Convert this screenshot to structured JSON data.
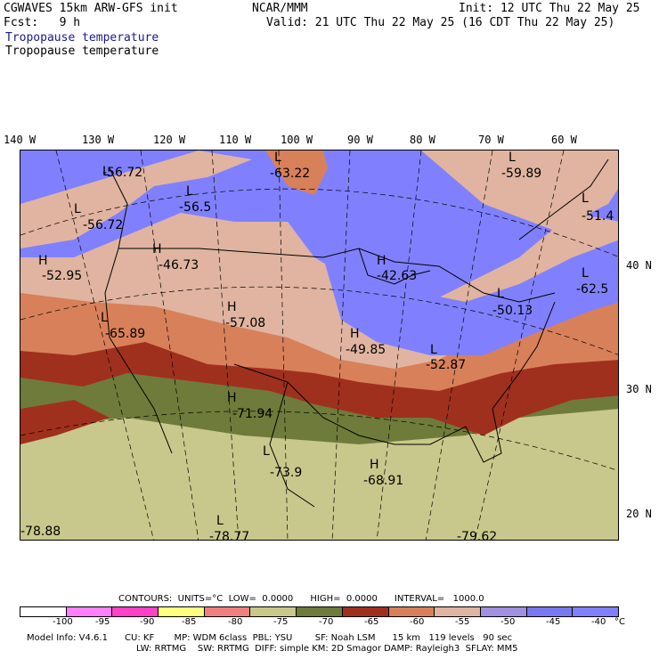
{
  "header": {
    "model": "CGWAVES 15km ARW-GFS init",
    "center": "NCAR/MMM",
    "init": "Init: 12 UTC Thu 22 May 25",
    "fcst": "Fcst:   9 h",
    "valid": "Valid: 21 UTC Thu 22 May 25 (16 CDT Thu 22 May 25)",
    "field1": "Tropopause temperature",
    "field2": "Tropopause temperature"
  },
  "axes": {
    "lon": [
      "140 W",
      "130 W",
      "120 W",
      "110 W",
      "100 W",
      "90 W",
      "80 W",
      "70 W",
      "60 W"
    ],
    "lat": [
      "40 N",
      "30 N",
      "20 N"
    ]
  },
  "map_labels": [
    {
      "mark": "L",
      "value": "-56.72"
    },
    {
      "mark": "L",
      "value": "-56.72"
    },
    {
      "mark": "L",
      "value": "-56.5"
    },
    {
      "mark": "L",
      "value": "-63.22"
    },
    {
      "mark": "L",
      "value": "-59.89"
    },
    {
      "mark": "L",
      "value": "-51.4"
    },
    {
      "mark": "H",
      "value": "-46.73"
    },
    {
      "mark": "H",
      "value": "-52.95"
    },
    {
      "mark": "H",
      "value": "-42.63"
    },
    {
      "mark": "L",
      "value": "-62.5"
    },
    {
      "mark": "L",
      "value": "-50.13"
    },
    {
      "mark": "L",
      "value": "-65.89"
    },
    {
      "mark": "H",
      "value": "-57.08"
    },
    {
      "mark": "H",
      "value": "-49.85"
    },
    {
      "mark": "L",
      "value": "-52.87"
    },
    {
      "mark": "H",
      "value": "-71.94"
    },
    {
      "mark": "L",
      "value": "-73.9"
    },
    {
      "mark": "H",
      "value": "-68.91"
    },
    {
      "mark": "",
      "value": "-78.88"
    },
    {
      "mark": "L",
      "value": "-78.77"
    },
    {
      "mark": "",
      "value": "-79.62"
    }
  ],
  "contours": "CONTOURS:  UNITS=°C  LOW=  0.0000      HIGH=  0.0000      INTERVAL=   1000.0",
  "legend": {
    "colors": [
      "#ffffff",
      "#ff7fff",
      "#ff40c8",
      "#ffff80",
      "#f08080",
      "#c8c88c",
      "#6e7b3a",
      "#a0301e",
      "#d8805a",
      "#e0b4a0",
      "#a090e0",
      "#7878f0",
      "#8080ff"
    ],
    "ticks": [
      "-100",
      "-95",
      "-90",
      "-85",
      "-80",
      "-75",
      "-70",
      "-65",
      "-60",
      "-55",
      "-50",
      "-45",
      "-40",
      "°C"
    ]
  },
  "footer": {
    "line1": "Model Info: V4.6.1      CU: KF       MP: WDM 6class  PBL: YSU        SF: Noah LSM      15 km   119 levels   90 sec",
    "line2": "LW: RRTMG    SW: RRTMG  DIFF: simple KM: 2D Smagor DAMP: Rayleigh3  SFLAY: MM5"
  }
}
